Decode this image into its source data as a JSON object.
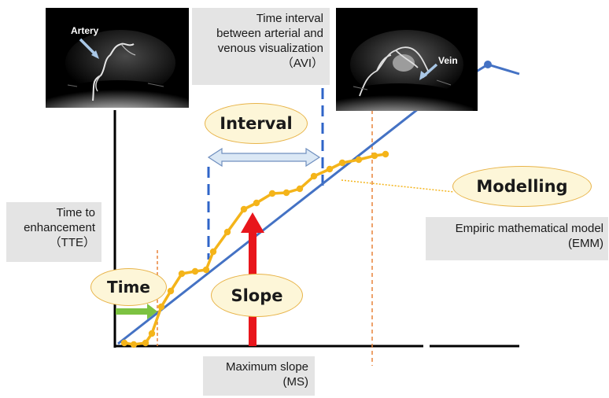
{
  "callouts": {
    "avi": {
      "lines": [
        "Time interval",
        "between arterial and",
        "venous visualization",
        "（AVI）"
      ]
    },
    "tte": {
      "lines": [
        "Time to",
        "enhancement",
        "（TTE）"
      ]
    },
    "emm": {
      "lines": [
        "Empiric mathematical model",
        "(EMM)"
      ]
    },
    "ms": {
      "lines": [
        "Maximum slope",
        "(MS)"
      ]
    }
  },
  "ovals": {
    "interval": "Interval",
    "modelling": "Modelling",
    "time": "Time",
    "slope": "Slope"
  },
  "photos": {
    "artery_label": "Artery",
    "vein_label": "Vein"
  },
  "colors": {
    "curve": "#f4b41a",
    "model_line": "#4472c4",
    "slope_arrow": "#e8161c",
    "tte_arrow": "#7cc241",
    "interval_arrow": "#dbe8f5",
    "guide_dash": "#e8833a",
    "oval_fill": "#fdf6d8",
    "oval_border": "#e8b44a",
    "callout_fill": "#e4e4e4"
  }
}
